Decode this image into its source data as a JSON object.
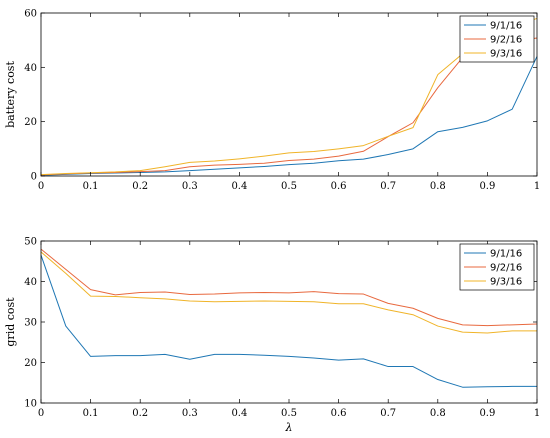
{
  "chart_data": [
    {
      "type": "line",
      "ylabel": "battery cost",
      "xlabel": "",
      "xlim": [
        0,
        1
      ],
      "ylim": [
        0,
        60
      ],
      "xticks": [
        "0",
        "0.1",
        "0.2",
        "0.3",
        "0.4",
        "0.5",
        "0.6",
        "0.7",
        "0.8",
        "0.9",
        "1"
      ],
      "yticks": [
        "0",
        "20",
        "40",
        "60"
      ],
      "legend": "top-right",
      "grid": false,
      "x": [
        0,
        0.05,
        0.1,
        0.15,
        0.2,
        0.25,
        0.3,
        0.35,
        0.4,
        0.45,
        0.5,
        0.55,
        0.6,
        0.65,
        0.7,
        0.75,
        0.8,
        0.85,
        0.9,
        0.95,
        1
      ],
      "series": [
        {
          "name": "9/1/16",
          "color": "#1f77b4",
          "values": [
            0.3,
            0.6,
            0.9,
            1.1,
            1.3,
            1.5,
            2.0,
            2.5,
            3.0,
            3.5,
            4.2,
            4.7,
            5.6,
            6.2,
            7.9,
            10.0,
            16.3,
            17.9,
            20.3,
            24.6,
            44.0
          ]
        },
        {
          "name": "9/2/16",
          "color": "#e8693f",
          "values": [
            0.4,
            0.8,
            1.1,
            1.3,
            1.6,
            2.0,
            3.4,
            4.0,
            4.3,
            4.7,
            5.7,
            6.2,
            7.3,
            9.1,
            14.5,
            19.6,
            32.5,
            43.6,
            47.5,
            49.5,
            50.8
          ]
        },
        {
          "name": "9/3/16",
          "color": "#f0b429",
          "values": [
            0.5,
            0.9,
            1.2,
            1.5,
            2.0,
            3.4,
            5.0,
            5.5,
            6.3,
            7.3,
            8.5,
            9.0,
            10.0,
            11.2,
            14.6,
            17.8,
            37.3,
            45.0,
            48.2,
            55.0,
            58.0
          ]
        }
      ]
    },
    {
      "type": "line",
      "ylabel": "grid cost",
      "xlabel": "λ",
      "xlim": [
        0,
        1
      ],
      "ylim": [
        10,
        50
      ],
      "xticks": [
        "0",
        "0.1",
        "0.2",
        "0.3",
        "0.4",
        "0.5",
        "0.6",
        "0.7",
        "0.8",
        "0.9",
        "1"
      ],
      "yticks": [
        "10",
        "20",
        "30",
        "40",
        "50"
      ],
      "legend": "top-right",
      "grid": false,
      "x": [
        0,
        0.05,
        0.1,
        0.15,
        0.2,
        0.25,
        0.3,
        0.35,
        0.4,
        0.45,
        0.5,
        0.55,
        0.6,
        0.65,
        0.7,
        0.75,
        0.8,
        0.85,
        0.9,
        0.95,
        1
      ],
      "series": [
        {
          "name": "9/1/16",
          "color": "#1f77b4",
          "values": [
            46.5,
            29.0,
            21.5,
            21.7,
            21.7,
            22.0,
            20.8,
            22.0,
            22.0,
            21.8,
            21.5,
            21.1,
            20.6,
            20.9,
            19.0,
            19.0,
            15.8,
            13.9,
            14.0,
            14.1,
            14.1
          ]
        },
        {
          "name": "9/2/16",
          "color": "#e8693f",
          "values": [
            48.0,
            43.0,
            38.0,
            36.7,
            37.3,
            37.4,
            36.8,
            36.9,
            37.2,
            37.3,
            37.2,
            37.5,
            37.0,
            36.9,
            34.6,
            33.4,
            30.9,
            29.3,
            29.1,
            29.3,
            29.5
          ]
        },
        {
          "name": "9/3/16",
          "color": "#f0b429",
          "values": [
            47.3,
            42.0,
            36.4,
            36.3,
            36.0,
            35.7,
            35.2,
            35.0,
            35.1,
            35.2,
            35.1,
            35.0,
            34.5,
            34.5,
            33.0,
            31.8,
            29.0,
            27.5,
            27.3,
            27.8,
            27.8
          ]
        }
      ]
    }
  ]
}
